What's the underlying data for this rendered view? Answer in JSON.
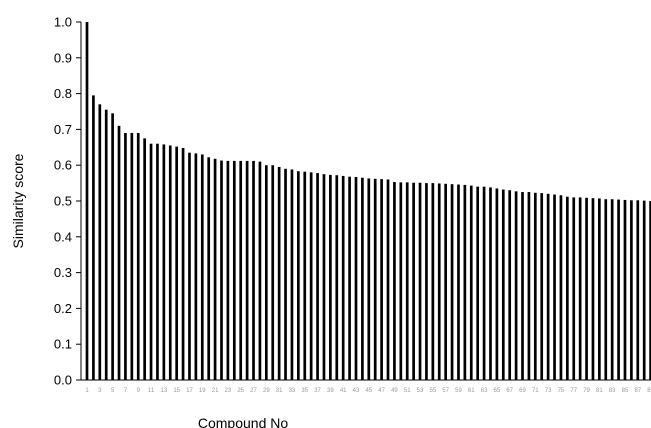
{
  "chart_data": {
    "type": "bar",
    "ylabel": "Similarity score",
    "xlabel": "Compound No",
    "ylim": [
      0,
      1.0
    ],
    "yticks": [
      "0.0",
      "0.1",
      "0.2",
      "0.3",
      "0.4",
      "0.5",
      "0.6",
      "0.7",
      "0.8",
      "0.9",
      "1.0"
    ],
    "grid": false,
    "categories": [
      "1",
      "2",
      "3",
      "4",
      "5",
      "6",
      "7",
      "8",
      "9",
      "10",
      "11",
      "12",
      "13",
      "14",
      "15",
      "16",
      "17",
      "18",
      "19",
      "20",
      "21",
      "22",
      "23",
      "24",
      "25",
      "26",
      "27",
      "28",
      "29",
      "30",
      "31",
      "32",
      "33",
      "34",
      "35",
      "36",
      "37",
      "38",
      "39",
      "40",
      "41",
      "42",
      "43",
      "44",
      "45",
      "46",
      "47",
      "48",
      "49",
      "50",
      "51",
      "52",
      "53",
      "54",
      "55",
      "56",
      "57",
      "58",
      "59",
      "60",
      "61",
      "62",
      "63",
      "64",
      "65",
      "66",
      "67",
      "68",
      "69",
      "70",
      "71",
      "72",
      "73",
      "74",
      "75",
      "76",
      "77",
      "78",
      "79",
      "80",
      "81",
      "82",
      "83",
      "84",
      "85",
      "86",
      "87",
      "88",
      "89"
    ],
    "xtick_labels": [
      "1",
      "3",
      "5",
      "7",
      "9",
      "11",
      "13",
      "15",
      "17",
      "19",
      "21",
      "23",
      "25",
      "27",
      "29",
      "31",
      "33",
      "35",
      "37",
      "39",
      "41",
      "43",
      "45",
      "47",
      "49",
      "51",
      "53",
      "55",
      "57",
      "59",
      "61",
      "63",
      "65",
      "67",
      "69",
      "71",
      "73",
      "75",
      "77",
      "79",
      "81",
      "83",
      "85",
      "87",
      "89"
    ],
    "values": [
      1.0,
      0.795,
      0.77,
      0.755,
      0.745,
      0.71,
      0.69,
      0.69,
      0.69,
      0.675,
      0.66,
      0.66,
      0.658,
      0.655,
      0.652,
      0.648,
      0.635,
      0.633,
      0.63,
      0.622,
      0.618,
      0.613,
      0.612,
      0.612,
      0.612,
      0.612,
      0.612,
      0.61,
      0.6,
      0.6,
      0.595,
      0.59,
      0.588,
      0.583,
      0.582,
      0.58,
      0.578,
      0.575,
      0.573,
      0.572,
      0.57,
      0.568,
      0.567,
      0.565,
      0.563,
      0.562,
      0.561,
      0.56,
      0.553,
      0.552,
      0.552,
      0.551,
      0.551,
      0.55,
      0.55,
      0.549,
      0.548,
      0.547,
      0.546,
      0.545,
      0.543,
      0.54,
      0.54,
      0.538,
      0.535,
      0.532,
      0.53,
      0.527,
      0.525,
      0.525,
      0.523,
      0.522,
      0.52,
      0.518,
      0.516,
      0.512,
      0.51,
      0.51,
      0.509,
      0.508,
      0.507,
      0.505,
      0.505,
      0.504,
      0.503,
      0.502,
      0.502,
      0.501,
      0.5
    ]
  }
}
